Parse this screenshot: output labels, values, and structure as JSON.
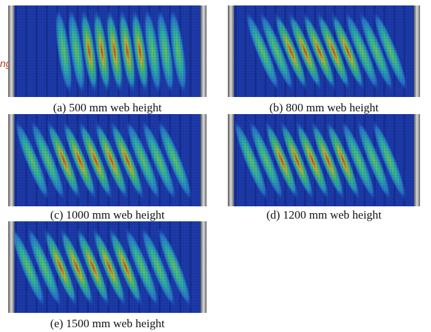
{
  "figure": {
    "stray_text": "ng",
    "panels": [
      {
        "caption": "(a) 500 mm web height"
      },
      {
        "caption": "(b) 800 mm web height"
      },
      {
        "caption": "(c) 1000 mm web height"
      },
      {
        "caption": "(d) 1200 mm web height"
      },
      {
        "caption": "(e) 1500 mm web height"
      }
    ]
  }
}
